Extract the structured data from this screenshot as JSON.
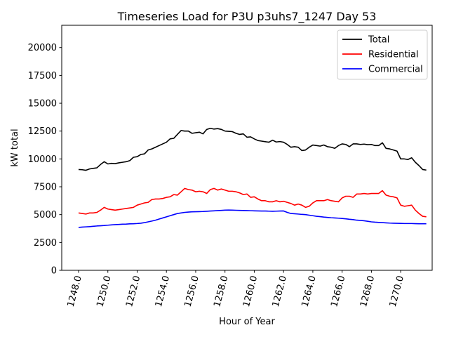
{
  "chart_data": {
    "type": "line",
    "title": "Timeseries Load for P3U p3uhs7_1247  Day 53",
    "xlabel": "Hour of Year",
    "ylabel": "kW total",
    "xlim": [
      1246.85,
      1272.15
    ],
    "ylim": [
      0,
      22000
    ],
    "xticks": [
      1248,
      1250,
      1252,
      1254,
      1256,
      1258,
      1260,
      1262,
      1264,
      1266,
      1268,
      1270
    ],
    "xtick_labels": [
      "1248.0",
      "1250.0",
      "1252.0",
      "1254.0",
      "1256.0",
      "1258.0",
      "1260.0",
      "1262.0",
      "1264.0",
      "1266.0",
      "1268.0",
      "1270.0"
    ],
    "yticks": [
      0,
      2500,
      5000,
      7500,
      10000,
      12500,
      15000,
      17500,
      20000
    ],
    "ytick_labels": [
      "0",
      "2500",
      "5000",
      "7500",
      "10000",
      "12500",
      "15000",
      "17500",
      "20000"
    ],
    "legend_position": "top-right",
    "x": [
      1248.0,
      1248.25,
      1248.5,
      1248.75,
      1249.0,
      1249.25,
      1249.5,
      1249.75,
      1250.0,
      1250.25,
      1250.5,
      1250.75,
      1251.0,
      1251.25,
      1251.5,
      1251.75,
      1252.0,
      1252.25,
      1252.5,
      1252.75,
      1253.0,
      1253.25,
      1253.5,
      1253.75,
      1254.0,
      1254.25,
      1254.5,
      1254.75,
      1255.0,
      1255.25,
      1255.5,
      1255.75,
      1256.0,
      1256.25,
      1256.5,
      1256.75,
      1257.0,
      1257.25,
      1257.5,
      1257.75,
      1258.0,
      1258.25,
      1258.5,
      1258.75,
      1259.0,
      1259.25,
      1259.5,
      1259.75,
      1260.0,
      1260.25,
      1260.5,
      1260.75,
      1261.0,
      1261.25,
      1261.5,
      1261.75,
      1262.0,
      1262.25,
      1262.5,
      1262.75,
      1263.0,
      1263.25,
      1263.5,
      1263.75,
      1264.0,
      1264.25,
      1264.5,
      1264.75,
      1265.0,
      1265.25,
      1265.5,
      1265.75,
      1266.0,
      1266.25,
      1266.5,
      1266.75,
      1267.0,
      1267.25,
      1267.5,
      1267.75,
      1268.0,
      1268.25,
      1268.5,
      1268.75,
      1269.0,
      1269.25,
      1269.5,
      1269.75,
      1270.0,
      1270.25,
      1270.5,
      1270.75,
      1271.0,
      1271.25,
      1271.5,
      1271.75
    ],
    "series": [
      {
        "name": "Total",
        "color": "#000000",
        "values": [
          9050,
          9030,
          8980,
          9100,
          9150,
          9200,
          9500,
          9750,
          9550,
          9600,
          9580,
          9650,
          9700,
          9750,
          9850,
          10150,
          10200,
          10400,
          10450,
          10800,
          10900,
          11050,
          11200,
          11350,
          11500,
          11800,
          11850,
          12200,
          12550,
          12500,
          12500,
          12300,
          12350,
          12400,
          12250,
          12650,
          12750,
          12680,
          12720,
          12650,
          12500,
          12480,
          12450,
          12300,
          12200,
          12250,
          11950,
          11980,
          11800,
          11650,
          11600,
          11550,
          11500,
          11680,
          11520,
          11560,
          11500,
          11300,
          11050,
          11100,
          11050,
          10750,
          10800,
          11050,
          11250,
          11200,
          11150,
          11250,
          11100,
          11050,
          10950,
          11200,
          11350,
          11300,
          11100,
          11350,
          11350,
          11300,
          11330,
          11280,
          11300,
          11200,
          11200,
          11450,
          10950,
          10900,
          10800,
          10700,
          10000,
          10000,
          9950,
          10100,
          9700,
          9400,
          9050,
          9000
        ]
      },
      {
        "name": "Residential",
        "color": "#ff0000",
        "values": [
          5150,
          5100,
          5050,
          5150,
          5150,
          5200,
          5400,
          5650,
          5500,
          5450,
          5400,
          5450,
          5500,
          5550,
          5600,
          5650,
          5850,
          5950,
          6050,
          6100,
          6350,
          6400,
          6400,
          6450,
          6550,
          6600,
          6800,
          6750,
          7050,
          7350,
          7250,
          7200,
          7050,
          7100,
          7050,
          6900,
          7250,
          7350,
          7200,
          7300,
          7200,
          7100,
          7100,
          7050,
          6950,
          6800,
          6850,
          6550,
          6600,
          6400,
          6250,
          6250,
          6150,
          6150,
          6250,
          6150,
          6200,
          6100,
          6000,
          5850,
          5950,
          5850,
          5650,
          5750,
          6050,
          6250,
          6250,
          6250,
          6350,
          6250,
          6200,
          6150,
          6500,
          6650,
          6650,
          6550,
          6850,
          6850,
          6900,
          6850,
          6900,
          6900,
          6900,
          7150,
          6750,
          6650,
          6600,
          6500,
          5850,
          5750,
          5800,
          5850,
          5400,
          5100,
          4850,
          4800
        ]
      },
      {
        "name": "Commercial",
        "color": "#0000ff",
        "values": [
          3850,
          3880,
          3900,
          3920,
          3950,
          3980,
          4000,
          4020,
          4050,
          4080,
          4100,
          4120,
          4140,
          4150,
          4170,
          4180,
          4200,
          4230,
          4280,
          4350,
          4420,
          4500,
          4600,
          4700,
          4800,
          4900,
          5000,
          5100,
          5150,
          5200,
          5230,
          5250,
          5260,
          5270,
          5280,
          5300,
          5320,
          5340,
          5360,
          5380,
          5400,
          5410,
          5400,
          5390,
          5380,
          5370,
          5360,
          5350,
          5340,
          5330,
          5320,
          5320,
          5310,
          5300,
          5310,
          5320,
          5330,
          5200,
          5100,
          5080,
          5050,
          5020,
          5000,
          4950,
          4900,
          4850,
          4820,
          4780,
          4750,
          4720,
          4700,
          4680,
          4650,
          4620,
          4580,
          4550,
          4500,
          4480,
          4450,
          4400,
          4350,
          4320,
          4300,
          4280,
          4260,
          4240,
          4230,
          4220,
          4210,
          4200,
          4200,
          4200,
          4190,
          4180,
          4180,
          4180
        ]
      }
    ]
  }
}
